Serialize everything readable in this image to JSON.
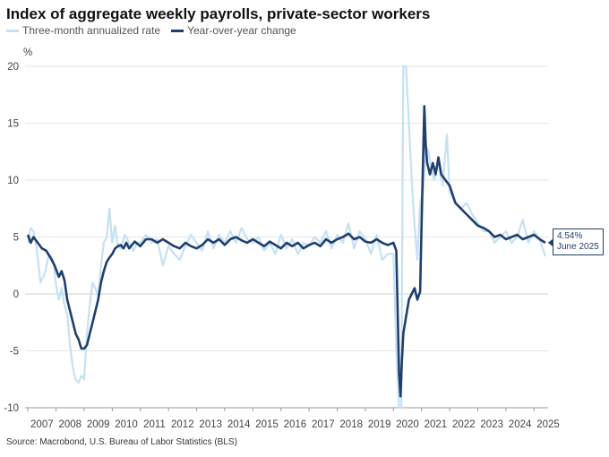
{
  "chart_data": {
    "type": "line",
    "title": "Index of aggregate weekly payrolls, private-sector workers",
    "ylabel": "%",
    "xlabel": "",
    "ylim": [
      -10,
      20
    ],
    "xlim": [
      2006.9,
      2025.5
    ],
    "yticks": [
      -10,
      -5,
      0,
      5,
      10,
      15,
      20
    ],
    "xticks": [
      "2007",
      "2008",
      "2009",
      "2010",
      "2011",
      "2012",
      "2013",
      "2014",
      "2015",
      "2016",
      "2017",
      "2018",
      "2019",
      "2020",
      "2021",
      "2022",
      "2023",
      "2024",
      "2025"
    ],
    "grid": true,
    "legend_position": "top-left",
    "series": [
      {
        "name": "Three-month annualized rate",
        "color": "#c5e1f3",
        "x": [
          2007.0,
          2007.1,
          2007.2,
          2007.3,
          2007.45,
          2007.6,
          2007.75,
          2007.9,
          2008.0,
          2008.1,
          2008.2,
          2008.3,
          2008.4,
          2008.5,
          2008.6,
          2008.7,
          2008.8,
          2008.9,
          2009.0,
          2009.1,
          2009.2,
          2009.3,
          2009.4,
          2009.5,
          2009.6,
          2009.7,
          2009.8,
          2009.9,
          2010.0,
          2010.1,
          2010.2,
          2010.3,
          2010.45,
          2010.6,
          2010.75,
          2010.9,
          2011.0,
          2011.2,
          2011.4,
          2011.6,
          2011.8,
          2012.0,
          2012.2,
          2012.4,
          2012.6,
          2012.8,
          2013.0,
          2013.2,
          2013.4,
          2013.6,
          2013.8,
          2014.0,
          2014.2,
          2014.4,
          2014.6,
          2014.8,
          2015.0,
          2015.2,
          2015.4,
          2015.6,
          2015.8,
          2016.0,
          2016.2,
          2016.4,
          2016.6,
          2016.8,
          2017.0,
          2017.2,
          2017.4,
          2017.6,
          2017.8,
          2018.0,
          2018.2,
          2018.4,
          2018.6,
          2018.8,
          2019.0,
          2019.2,
          2019.4,
          2019.6,
          2019.8,
          2020.0,
          2020.1,
          2020.2,
          2020.28,
          2020.35,
          2020.45,
          2020.55,
          2020.65,
          2020.75,
          2020.85,
          2020.95,
          2021.05,
          2021.15,
          2021.25,
          2021.35,
          2021.45,
          2021.6,
          2021.75,
          2021.9,
          2022.0,
          2022.2,
          2022.4,
          2022.6,
          2022.8,
          2023.0,
          2023.2,
          2023.4,
          2023.6,
          2023.8,
          2024.0,
          2024.2,
          2024.4,
          2024.6,
          2024.8,
          2025.0,
          2025.2,
          2025.4
        ],
        "values": [
          4.5,
          5.8,
          5.5,
          4.2,
          1.0,
          1.8,
          3.5,
          3.0,
          0.8,
          -0.5,
          0.5,
          -1.0,
          -1.8,
          -4.5,
          -6.5,
          -7.5,
          -7.8,
          -7.2,
          -7.5,
          -3.5,
          -1.0,
          1.0,
          0.5,
          -0.2,
          2.5,
          4.5,
          5.0,
          7.5,
          4.5,
          6.0,
          4.2,
          4.0,
          5.2,
          4.5,
          3.8,
          4.5,
          4.5,
          5.2,
          4.5,
          4.8,
          2.5,
          4.2,
          3.5,
          3.0,
          4.2,
          5.2,
          4.5,
          3.8,
          5.5,
          4.0,
          5.2,
          4.5,
          5.5,
          4.5,
          5.8,
          4.8,
          4.5,
          5.0,
          3.8,
          4.5,
          3.5,
          5.2,
          4.0,
          4.8,
          3.5,
          4.5,
          4.2,
          5.0,
          4.5,
          5.5,
          4.0,
          5.2,
          4.5,
          6.2,
          4.0,
          5.5,
          4.8,
          3.5,
          5.2,
          3.0,
          3.5,
          3.5,
          -5.0,
          -10.0,
          -10.0,
          20.0,
          20.0,
          15.0,
          10.0,
          6.0,
          3.0,
          8.0,
          9.0,
          13.0,
          12.5,
          11.0,
          10.0,
          11.5,
          9.5,
          14.0,
          9.0,
          8.0,
          7.5,
          8.0,
          7.0,
          6.2,
          5.5,
          5.5,
          4.5,
          5.0,
          5.5,
          4.5,
          5.0,
          6.5,
          4.5,
          5.5,
          4.8,
          3.3
        ]
      },
      {
        "name": "Year-over-year change",
        "color": "#1f3f6e",
        "x": [
          2007.0,
          2007.1,
          2007.2,
          2007.35,
          2007.5,
          2007.65,
          2007.8,
          2007.95,
          2008.1,
          2008.2,
          2008.3,
          2008.4,
          2008.5,
          2008.6,
          2008.7,
          2008.8,
          2008.9,
          2009.0,
          2009.1,
          2009.2,
          2009.3,
          2009.4,
          2009.5,
          2009.6,
          2009.7,
          2009.8,
          2009.9,
          2010.0,
          2010.1,
          2010.2,
          2010.3,
          2010.4,
          2010.5,
          2010.6,
          2010.8,
          2011.0,
          2011.2,
          2011.4,
          2011.6,
          2011.8,
          2012.0,
          2012.2,
          2012.4,
          2012.6,
          2012.8,
          2013.0,
          2013.2,
          2013.4,
          2013.6,
          2013.8,
          2014.0,
          2014.2,
          2014.4,
          2014.6,
          2014.8,
          2015.0,
          2015.2,
          2015.4,
          2015.6,
          2015.8,
          2016.0,
          2016.2,
          2016.4,
          2016.6,
          2016.8,
          2017.0,
          2017.2,
          2017.4,
          2017.6,
          2017.8,
          2018.0,
          2018.2,
          2018.4,
          2018.6,
          2018.8,
          2019.0,
          2019.2,
          2019.4,
          2019.6,
          2019.8,
          2020.0,
          2020.1,
          2020.2,
          2020.25,
          2020.3,
          2020.35,
          2020.45,
          2020.55,
          2020.65,
          2020.75,
          2020.85,
          2020.95,
          2021.0,
          2021.1,
          2021.15,
          2021.2,
          2021.3,
          2021.4,
          2021.5,
          2021.6,
          2021.7,
          2021.85,
          2022.0,
          2022.2,
          2022.4,
          2022.6,
          2022.8,
          2023.0,
          2023.2,
          2023.4,
          2023.6,
          2023.8,
          2024.0,
          2024.2,
          2024.4,
          2024.6,
          2024.8,
          2025.0,
          2025.2,
          2025.4
        ],
        "values": [
          5.2,
          4.5,
          5.0,
          4.5,
          4.0,
          3.8,
          3.2,
          2.5,
          1.5,
          2.0,
          1.2,
          -0.5,
          -1.5,
          -2.5,
          -3.5,
          -4.0,
          -4.8,
          -4.8,
          -4.5,
          -3.5,
          -2.5,
          -1.5,
          -0.5,
          1.0,
          2.0,
          2.8,
          3.2,
          3.5,
          4.0,
          4.2,
          4.3,
          4.0,
          4.5,
          4.0,
          4.6,
          4.2,
          4.8,
          4.8,
          4.5,
          4.8,
          4.5,
          4.2,
          4.0,
          4.5,
          4.2,
          4.0,
          4.3,
          4.8,
          4.5,
          4.8,
          4.3,
          4.8,
          5.0,
          4.7,
          4.5,
          4.8,
          4.5,
          4.2,
          4.6,
          4.3,
          4.0,
          4.5,
          4.2,
          4.5,
          4.0,
          4.3,
          4.5,
          4.2,
          4.8,
          4.5,
          4.8,
          5.0,
          5.3,
          4.8,
          5.0,
          4.6,
          4.5,
          4.8,
          4.5,
          4.3,
          4.5,
          3.8,
          -7.0,
          -9.0,
          -6.0,
          -3.5,
          -2.0,
          -0.5,
          0.0,
          0.5,
          -0.5,
          0.2,
          6.0,
          16.5,
          13.0,
          11.5,
          10.5,
          11.5,
          10.5,
          12.0,
          10.5,
          10.0,
          9.5,
          8.0,
          7.5,
          7.0,
          6.5,
          6.0,
          5.8,
          5.5,
          5.0,
          5.2,
          4.8,
          5.0,
          5.2,
          4.8,
          5.0,
          5.2,
          4.8,
          4.5
        ]
      }
    ],
    "annotation": {
      "value": "4.54%",
      "date": "June 2025"
    }
  },
  "source": "Source: Macrobond, U.S. Bureau of Labor Statistics (BLS)"
}
